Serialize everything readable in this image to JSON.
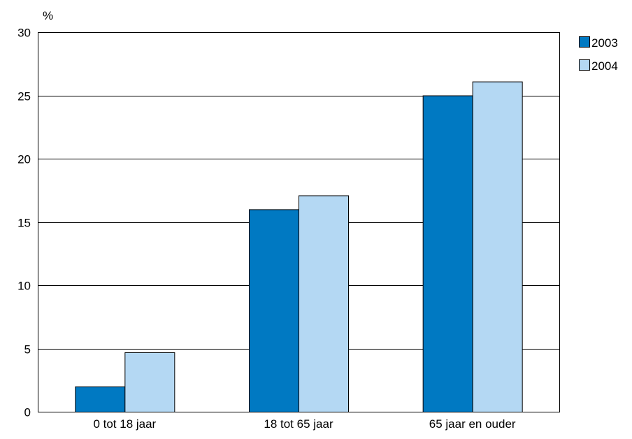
{
  "chart_data": {
    "type": "bar",
    "ylabel": "%",
    "categories": [
      "0 tot 18 jaar",
      "18 tot 65 jaar",
      "65 jaar en ouder"
    ],
    "series": [
      {
        "name": "2003",
        "values": [
          2.0,
          16.0,
          25.0
        ],
        "color": "#0079c2"
      },
      {
        "name": "2004",
        "values": [
          4.7,
          17.1,
          26.1
        ],
        "color": "#b4d8f3"
      }
    ],
    "ylim": [
      0,
      30
    ],
    "yticks": [
      0,
      5,
      10,
      15,
      20,
      25,
      30
    ],
    "grid": true,
    "legend": "top-right"
  }
}
